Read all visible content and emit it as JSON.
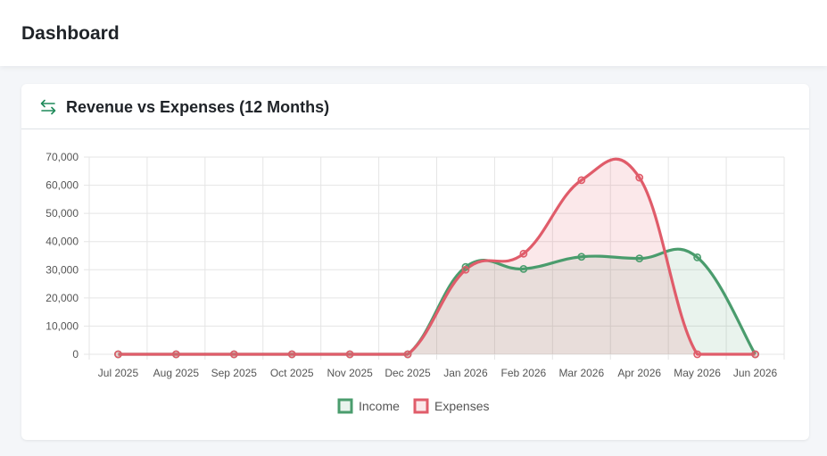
{
  "page": {
    "title": "Dashboard"
  },
  "card": {
    "title": "Revenue vs Expenses (12 Months)",
    "icon": "arrows-exchange-icon"
  },
  "colors": {
    "income": "#4a9c6d",
    "income_fill": "rgba(74,156,109,0.12)",
    "expenses": "#e05c6a",
    "expenses_fill": "rgba(224,92,106,0.14)",
    "grid": "#e5e5e5",
    "accent": "#1f8a5a"
  },
  "chart_data": {
    "type": "area",
    "categories": [
      "Jul 2025",
      "Aug 2025",
      "Sep 2025",
      "Oct 2025",
      "Nov 2025",
      "Dec 2025",
      "Jan 2026",
      "Feb 2026",
      "Mar 2026",
      "Apr 2026",
      "May 2026",
      "Jun 2026"
    ],
    "series": [
      {
        "name": "Income",
        "values": [
          0,
          0,
          0,
          0,
          0,
          0,
          31000,
          30300,
          34600,
          34000,
          34400,
          0
        ]
      },
      {
        "name": "Expenses",
        "values": [
          0,
          0,
          0,
          0,
          0,
          0,
          30000,
          35700,
          61800,
          62700,
          0,
          0
        ]
      }
    ],
    "yticks": [
      "70,000",
      "60,000",
      "50,000",
      "40,000",
      "30,000",
      "20,000",
      "10,000",
      "0"
    ],
    "ylim": [
      0,
      70000
    ],
    "grid": true,
    "legend": "bottom"
  }
}
